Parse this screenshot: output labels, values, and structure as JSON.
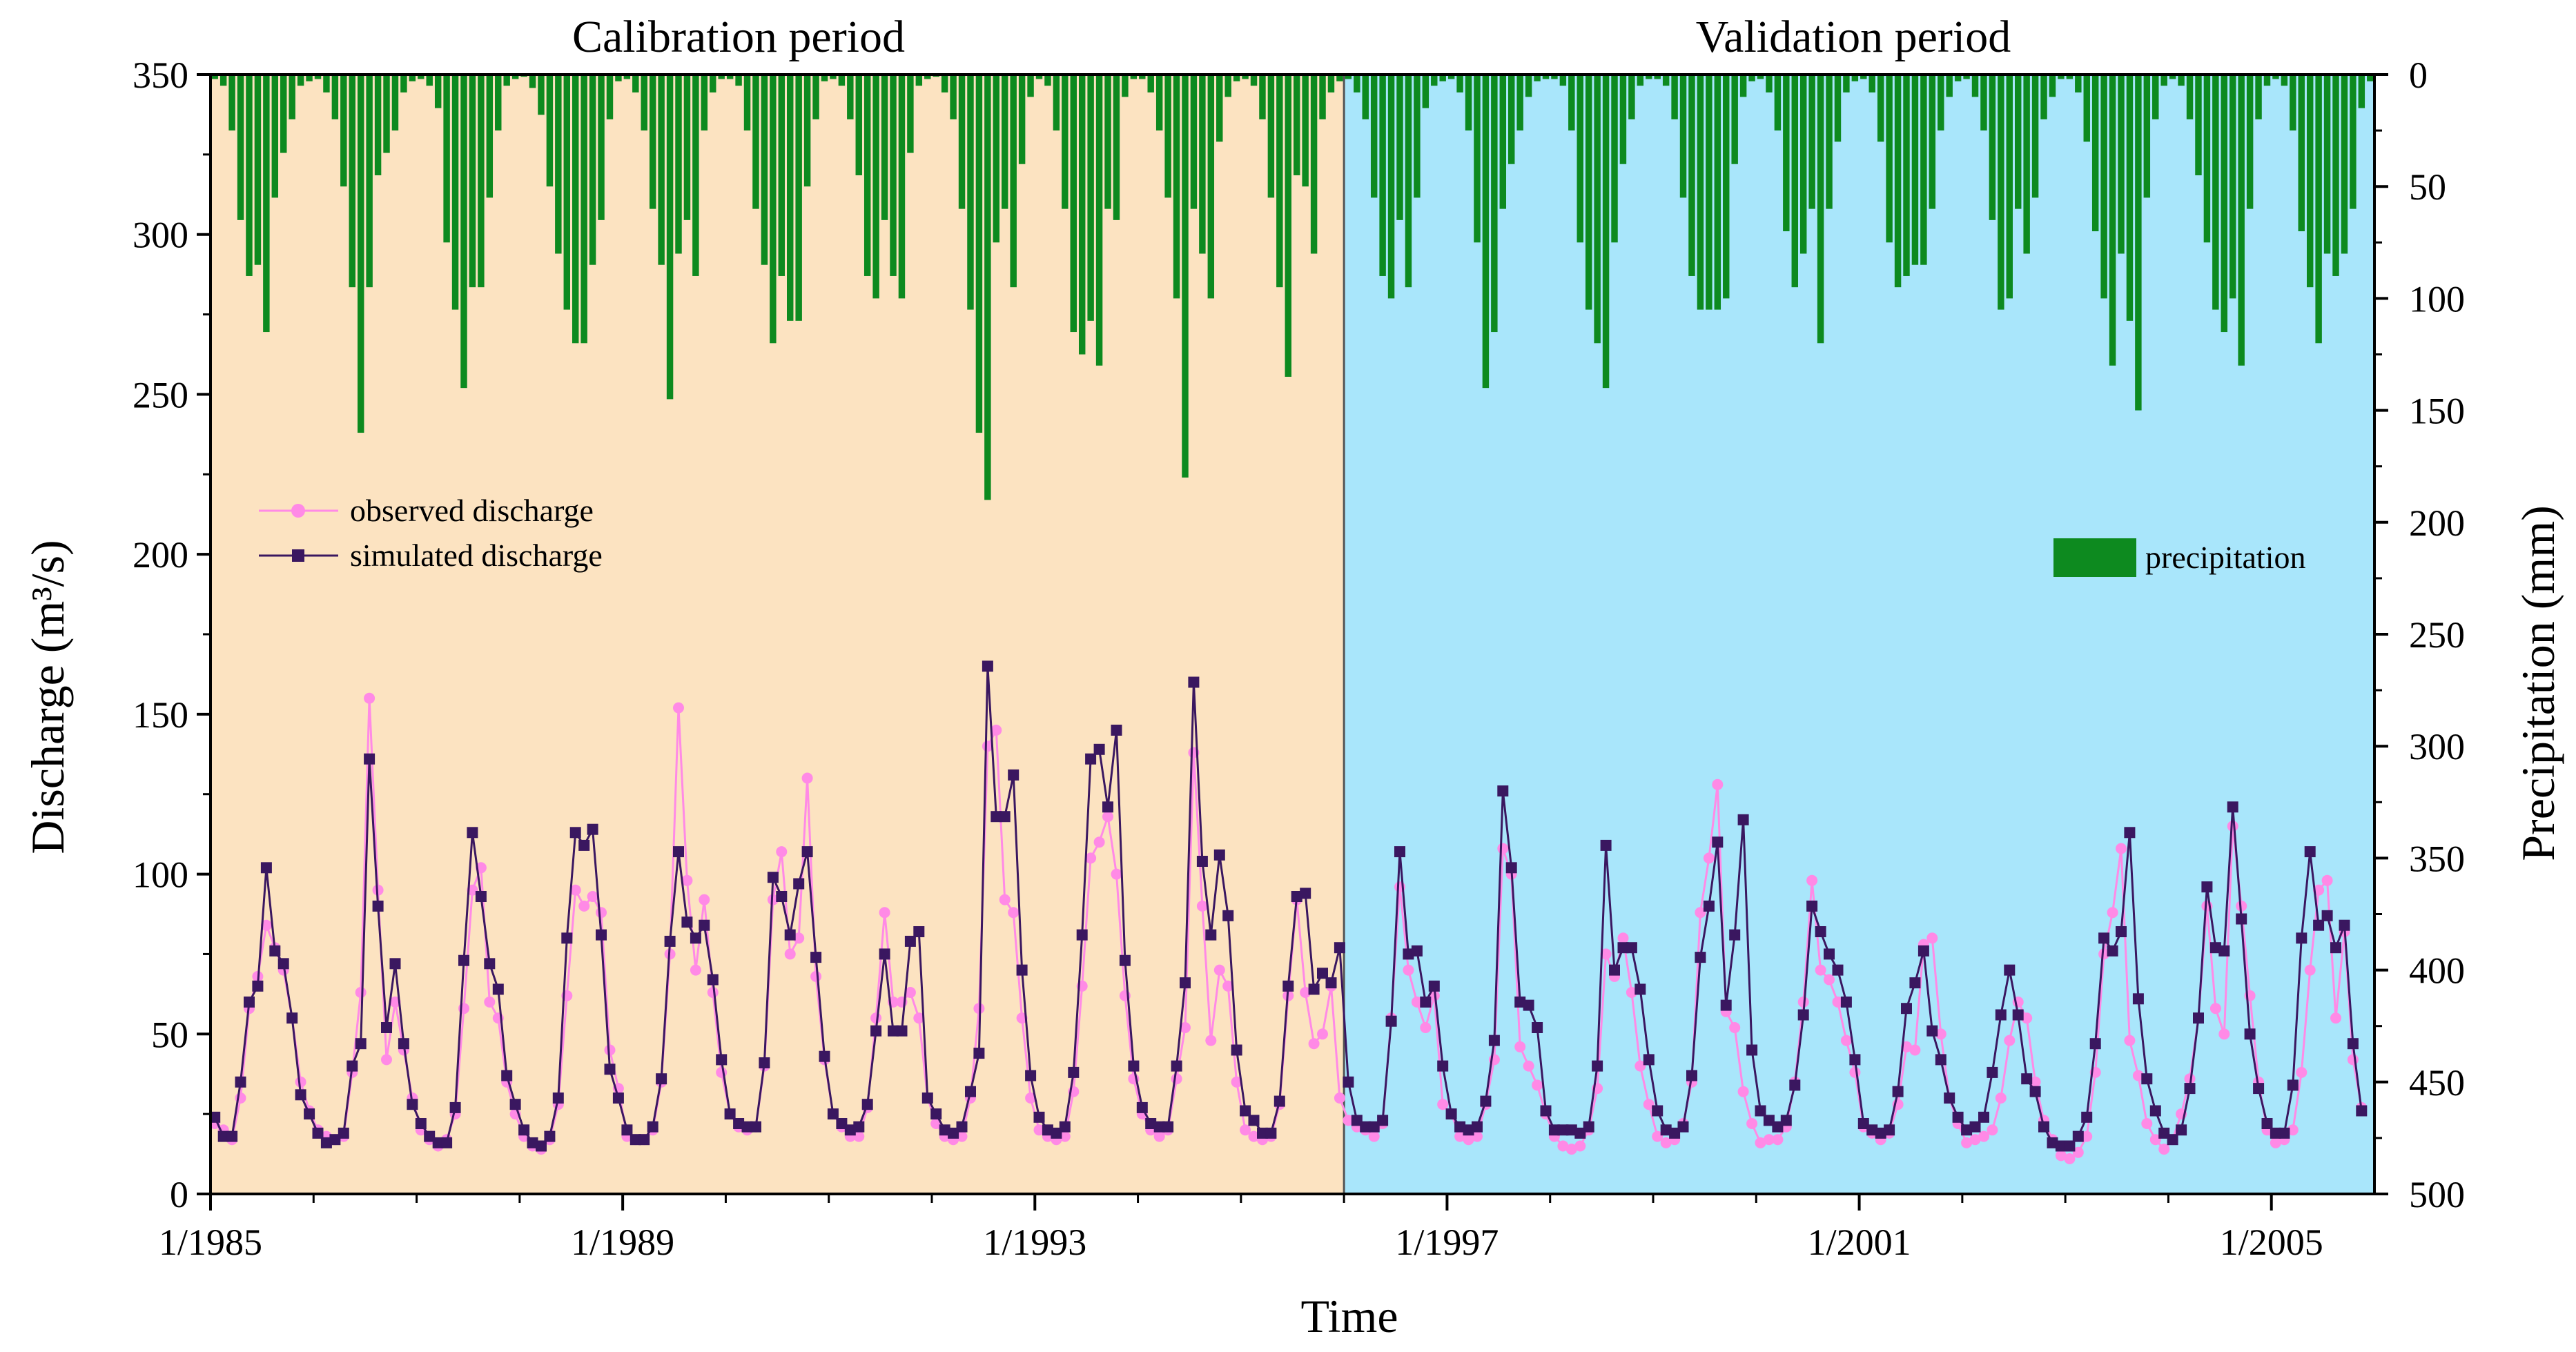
{
  "chart_data": {
    "type": "line",
    "periods": {
      "calibration": {
        "label": "Calibration period",
        "start": "1985-01",
        "end": "1995-12",
        "color": "#fce3c1"
      },
      "validation": {
        "label": "Validation period",
        "start": "1996-01",
        "end": "2005-12",
        "color": "#a9e6fb"
      }
    },
    "xlabel": "Time",
    "ylabel_left": "Discharge (m³/s)",
    "ylabel_right": "Precipitation (mm)",
    "x_range": [
      "1985-01",
      "2005-12"
    ],
    "x_ticks": [
      "1/1985",
      "1/1989",
      "1/1993",
      "1/1997",
      "1/2001",
      "1/2005"
    ],
    "x_tick_dates": [
      "1985-01",
      "1989-01",
      "1993-01",
      "1997-01",
      "2001-01",
      "2005-01"
    ],
    "ylim_left": [
      0,
      350
    ],
    "yticks_left": [
      0,
      50,
      100,
      150,
      200,
      250,
      300,
      350
    ],
    "ylim_right": [
      0,
      500
    ],
    "yticks_right": [
      0,
      50,
      100,
      150,
      200,
      250,
      300,
      350,
      400,
      450,
      500
    ],
    "right_axis_inverted": true,
    "legend": {
      "left_placement": "upper-left",
      "right_placement": "middle-right",
      "observed": "observed discharge",
      "simulated": "simulated discharge",
      "precipitation": "precipitation"
    },
    "colors": {
      "observed": "#ff8ae6",
      "simulated": "#3a1760",
      "precipitation": "#0d8a1f"
    },
    "series": [
      {
        "name": "observed discharge",
        "values": [
          22,
          20,
          17,
          30,
          58,
          68,
          84,
          77,
          70,
          55,
          35,
          26,
          20,
          18,
          17,
          18,
          38,
          63,
          155,
          95,
          42,
          60,
          45,
          30,
          20,
          17,
          15,
          17,
          25,
          58,
          95,
          102,
          60,
          55,
          35,
          25,
          18,
          15,
          14,
          17,
          28,
          62,
          95,
          90,
          93,
          88,
          45,
          33,
          18,
          17,
          17,
          20,
          35,
          75,
          152,
          98,
          70,
          92,
          63,
          38,
          25,
          21,
          20,
          21,
          40,
          92,
          107,
          75,
          80,
          130,
          68,
          42,
          25,
          21,
          18,
          18,
          27,
          55,
          88,
          60,
          60,
          63,
          55,
          30,
          22,
          18,
          17,
          18,
          30,
          58,
          140,
          145,
          92,
          88,
          55,
          30,
          20,
          18,
          17,
          18,
          32,
          65,
          105,
          110,
          118,
          100,
          62,
          36,
          25,
          20,
          18,
          20,
          36,
          52,
          138,
          90,
          48,
          70,
          65,
          35,
          20,
          18,
          17,
          18,
          28,
          62,
          92,
          63,
          47,
          50,
          65,
          30,
          23,
          21,
          20,
          18,
          22,
          55,
          96,
          70,
          60,
          52,
          62,
          28,
          25,
          18,
          17,
          18,
          28,
          42,
          108,
          100,
          46,
          40,
          34,
          25,
          18,
          15,
          14,
          15,
          20,
          33,
          75,
          68,
          80,
          63,
          40,
          28,
          18,
          16,
          17,
          22,
          35,
          88,
          105,
          128,
          57,
          52,
          32,
          22,
          16,
          17,
          17,
          21,
          35,
          60,
          98,
          70,
          67,
          60,
          48,
          38,
          21,
          19,
          17,
          19,
          28,
          46,
          45,
          78,
          80,
          50,
          30,
          22,
          16,
          17,
          18,
          20,
          30,
          48,
          60,
          55,
          35,
          23,
          17,
          12,
          11,
          13,
          18,
          38,
          75,
          88,
          108,
          48,
          37,
          22,
          17,
          14,
          17,
          25,
          36,
          55,
          90,
          58,
          50,
          115,
          90,
          62,
          35,
          20,
          16,
          17,
          20,
          38,
          70,
          95,
          98,
          55,
          82,
          42,
          27
        ]
      },
      {
        "name": "simulated discharge",
        "values": [
          24,
          18,
          18,
          35,
          60,
          65,
          102,
          76,
          72,
          55,
          31,
          25,
          19,
          16,
          17,
          19,
          40,
          47,
          136,
          90,
          52,
          72,
          47,
          28,
          22,
          18,
          16,
          16,
          27,
          73,
          113,
          93,
          72,
          64,
          37,
          28,
          20,
          16,
          15,
          18,
          30,
          80,
          113,
          109,
          114,
          81,
          39,
          30,
          20,
          17,
          17,
          21,
          36,
          79,
          107,
          85,
          80,
          84,
          67,
          42,
          25,
          22,
          21,
          21,
          41,
          99,
          93,
          81,
          97,
          107,
          74,
          43,
          25,
          22,
          20,
          21,
          28,
          51,
          75,
          51,
          51,
          79,
          82,
          30,
          25,
          20,
          19,
          21,
          32,
          44,
          165,
          118,
          118,
          131,
          70,
          37,
          24,
          20,
          19,
          21,
          38,
          81,
          136,
          139,
          121,
          145,
          73,
          40,
          27,
          22,
          21,
          21,
          40,
          66,
          160,
          104,
          81,
          106,
          87,
          45,
          26,
          23,
          19,
          19,
          29,
          65,
          93,
          94,
          64,
          69,
          66,
          77,
          35,
          23,
          21,
          21,
          23,
          54,
          107,
          75,
          76,
          60,
          65,
          40,
          25,
          21,
          20,
          21,
          29,
          48,
          126,
          102,
          60,
          59,
          52,
          26,
          20,
          20,
          20,
          19,
          21,
          40,
          109,
          70,
          77,
          77,
          64,
          42,
          26,
          20,
          19,
          21,
          37,
          74,
          90,
          110,
          59,
          81,
          117,
          45,
          26,
          23,
          21,
          23,
          34,
          56,
          90,
          82,
          75,
          70,
          60,
          42,
          22,
          20,
          19,
          20,
          32,
          58,
          66,
          76,
          51,
          42,
          30,
          24,
          20,
          21,
          24,
          38,
          56,
          70,
          56,
          36,
          32,
          21,
          16,
          15,
          15,
          18,
          24,
          47,
          80,
          76,
          82,
          113,
          61,
          36,
          26,
          19,
          17,
          20,
          33,
          55,
          96,
          77,
          76,
          121,
          86,
          50,
          33,
          22,
          19,
          19,
          34,
          80,
          107,
          84,
          87,
          77,
          84,
          47,
          26
        ]
      },
      {
        "name": "precipitation",
        "values": [
          2,
          5,
          25,
          65,
          90,
          85,
          115,
          55,
          35,
          20,
          5,
          3,
          2,
          8,
          20,
          50,
          95,
          160,
          95,
          45,
          35,
          25,
          8,
          3,
          2,
          5,
          15,
          75,
          105,
          140,
          95,
          95,
          55,
          25,
          5,
          2,
          1,
          6,
          18,
          50,
          80,
          105,
          120,
          120,
          85,
          65,
          20,
          3,
          2,
          8,
          25,
          60,
          85,
          145,
          80,
          65,
          90,
          25,
          8,
          2,
          2,
          5,
          25,
          60,
          85,
          120,
          90,
          110,
          110,
          50,
          20,
          3,
          2,
          5,
          20,
          45,
          90,
          100,
          65,
          90,
          100,
          35,
          5,
          2,
          1,
          8,
          20,
          60,
          105,
          160,
          190,
          75,
          60,
          95,
          40,
          10,
          2,
          5,
          25,
          60,
          115,
          125,
          110,
          130,
          60,
          65,
          10,
          2,
          2,
          8,
          25,
          55,
          100,
          180,
          60,
          80,
          100,
          30,
          10,
          3,
          2,
          5,
          20,
          55,
          95,
          135,
          45,
          50,
          80,
          20,
          8,
          3,
          2,
          8,
          20,
          55,
          90,
          100,
          65,
          95,
          55,
          15,
          5,
          3,
          2,
          8,
          25,
          75,
          140,
          115,
          60,
          40,
          25,
          10,
          3,
          2,
          2,
          5,
          25,
          75,
          105,
          120,
          140,
          75,
          40,
          20,
          5,
          2,
          2,
          5,
          20,
          55,
          90,
          105,
          105,
          105,
          100,
          40,
          10,
          3,
          2,
          8,
          25,
          70,
          95,
          80,
          60,
          120,
          60,
          30,
          8,
          3,
          2,
          8,
          30,
          75,
          95,
          90,
          85,
          85,
          60,
          25,
          10,
          3,
          2,
          10,
          25,
          65,
          105,
          100,
          60,
          80,
          55,
          20,
          10,
          2,
          2,
          8,
          30,
          70,
          100,
          130,
          80,
          110,
          150,
          55,
          20,
          5,
          2,
          5,
          20,
          45,
          75,
          105,
          115,
          100,
          130,
          60,
          20,
          5,
          2,
          5,
          25,
          70,
          95,
          120,
          80,
          90,
          80,
          60,
          15,
          3
        ]
      }
    ]
  }
}
